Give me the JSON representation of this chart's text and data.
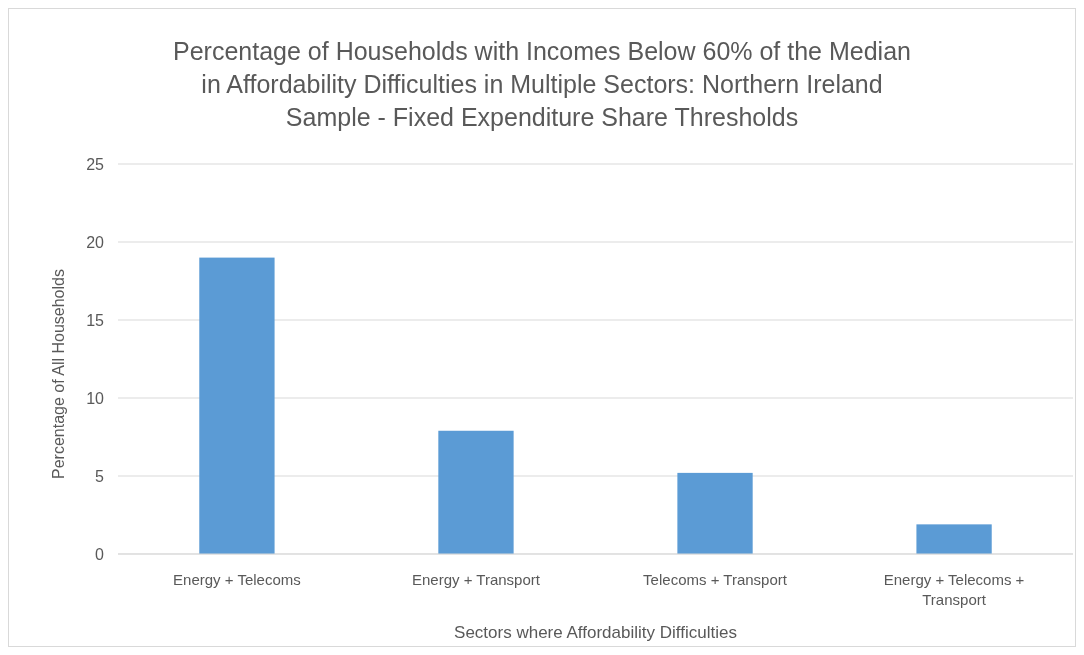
{
  "chart_data": {
    "type": "bar",
    "title": "Percentage of Households with Incomes Below 60% of the Median in Affordability Difficulties in Multiple Sectors: Northern Ireland Sample - Fixed Expenditure Share Thresholds",
    "xlabel": "Sectors where Affordability Difficulties",
    "ylabel": "Percentage of All Households",
    "categories": [
      "Energy + Telecoms",
      "Energy + Transport",
      "Telecoms + Transport",
      "Energy + Telecoms + Transport"
    ],
    "values": [
      19.0,
      7.9,
      5.2,
      1.9
    ],
    "color": "#5b9bd5",
    "ylim": [
      0,
      25
    ],
    "yticks": [
      0,
      5,
      10,
      15,
      20,
      25
    ],
    "grid": "y"
  }
}
